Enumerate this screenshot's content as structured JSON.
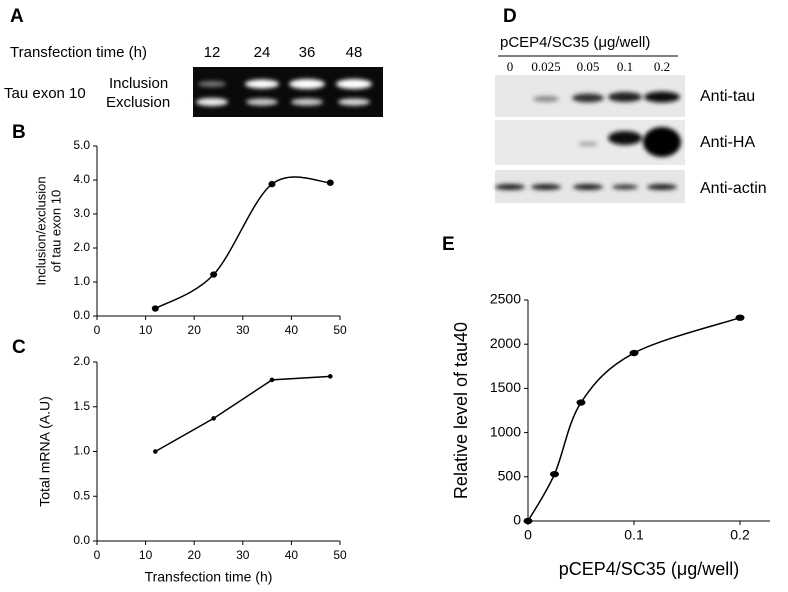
{
  "gel_a": {
    "label": "A",
    "row_title": "Transfection time (h)",
    "lanes": [
      "12",
      "24",
      "36",
      "48"
    ],
    "row_label": "Tau exon 10",
    "bands": [
      "Inclusion",
      "Exclusion"
    ]
  },
  "blot_d": {
    "label": "D",
    "title": "pCEP4/SC35 (μg/well)",
    "lanes": [
      "0",
      "0.025",
      "0.05",
      "0.1",
      "0.2"
    ],
    "rows": [
      "Anti-tau",
      "Anti-HA",
      "Anti-actin"
    ]
  },
  "chart_data": [
    {
      "type": "line",
      "label": "B",
      "smooth": true,
      "color": "#000000",
      "ylabel": [
        "Inclusion/exclusion",
        "of tau exon 10"
      ],
      "x": [
        12,
        24,
        36,
        48
      ],
      "values": [
        0.22,
        1.22,
        3.88,
        3.92
      ],
      "xlim": [
        0,
        50
      ],
      "xticks": [
        0,
        10,
        20,
        30,
        40,
        50
      ],
      "ylim": [
        0,
        5
      ],
      "yticks": [
        {
          "value": 0,
          "label": "0.0"
        },
        {
          "value": 1,
          "label": "1.0"
        },
        {
          "value": 2,
          "label": "2.0"
        },
        {
          "value": 3,
          "label": "3.0"
        },
        {
          "value": 4,
          "label": "4.0"
        },
        {
          "value": 5,
          "label": "5.0"
        }
      ]
    },
    {
      "type": "line",
      "label": "C",
      "smooth": false,
      "color": "#000000",
      "ylabel": [
        "Total mRNA (A.U)"
      ],
      "xlabel": "Transfection  time (h)",
      "x": [
        12,
        24,
        36,
        48
      ],
      "values": [
        1.0,
        1.37,
        1.8,
        1.84
      ],
      "xlim": [
        0,
        50
      ],
      "xticks": [
        0,
        10,
        20,
        30,
        40,
        50
      ],
      "ylim": [
        0,
        2
      ],
      "yticks": [
        {
          "value": 0,
          "label": "0.0"
        },
        0.5,
        {
          "value": 1,
          "label": "1.0"
        },
        1.5,
        {
          "value": 2,
          "label": "2.0"
        }
      ]
    },
    {
      "type": "line",
      "label": "E",
      "smooth": true,
      "color": "#000000",
      "ylabel": [
        "Relative level of tau40"
      ],
      "xlabel": "pCEP4/SC35 (μg/well)",
      "x": [
        0,
        0.025,
        0.05,
        0.1,
        0.2
      ],
      "values": [
        0,
        530,
        1340,
        1900,
        2300
      ],
      "xlim": [
        0,
        0.23
      ],
      "xticks": [
        0,
        0.1,
        0.2
      ],
      "ylim": [
        0,
        2500
      ],
      "yticks": [
        0,
        500,
        1000,
        1500,
        2000,
        2500
      ]
    }
  ]
}
